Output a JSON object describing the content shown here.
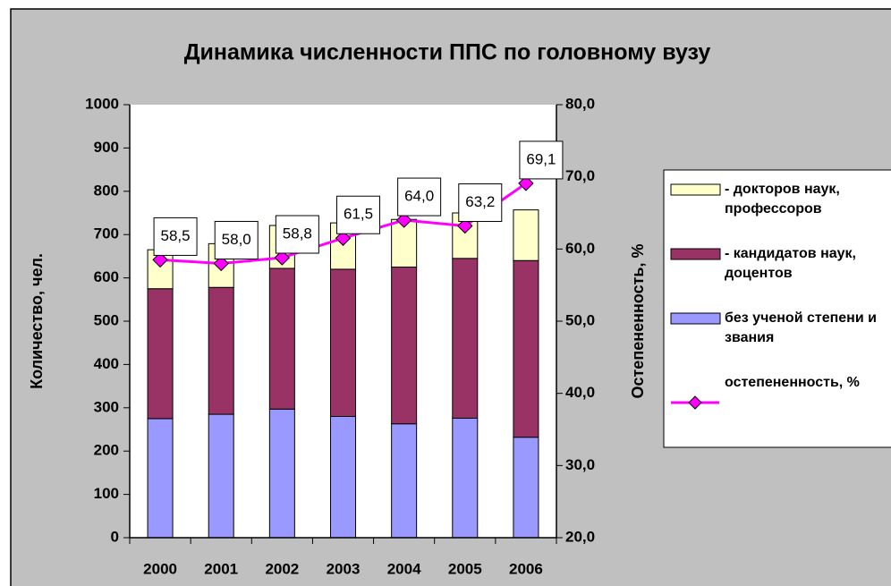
{
  "chart_data": {
    "type": "bar",
    "title": "Динамика численности ППС по головному вузу",
    "y_label": "Количество, чел.",
    "y2_label": "Остепененность, %",
    "categories": [
      "2000",
      "2001",
      "2002",
      "2003",
      "2004",
      "2005",
      "2006"
    ],
    "stacked": true,
    "series": [
      {
        "name": "без ученой степени и звания",
        "color": "#9999ff",
        "values": [
          275,
          285,
          297,
          280,
          263,
          276,
          232
        ]
      },
      {
        "name": "- кандидатов наук, доцентов",
        "color": "#993366",
        "values": [
          300,
          293,
          325,
          340,
          362,
          369,
          408
        ]
      },
      {
        "name": "- докторов наук, профессоров",
        "color": "#ffffcc",
        "values": [
          90,
          101,
          99,
          107,
          110,
          105,
          117
        ]
      },
      {
        "name": "остепененность, %",
        "type": "line",
        "axis": "y2",
        "color": "#ff00ff",
        "values": [
          58.5,
          58.0,
          58.8,
          61.5,
          64.0,
          63.2,
          69.1
        ],
        "value_labels": [
          "58,5",
          "58,0",
          "58,8",
          "61,5",
          "64,0",
          "63,2",
          "69,1"
        ]
      }
    ],
    "ylim": [
      0,
      1000
    ],
    "yticks": [
      0,
      100,
      200,
      300,
      400,
      500,
      600,
      700,
      800,
      900,
      1000
    ],
    "y2lim": [
      20,
      80
    ],
    "y2ticks": [
      {
        "value": 20,
        "label": "20,0"
      },
      {
        "value": 30,
        "label": "30,0"
      },
      {
        "value": 40,
        "label": "40,0"
      },
      {
        "value": 50,
        "label": "50,0"
      },
      {
        "value": 60,
        "label": "60,0"
      },
      {
        "value": 70,
        "label": "70,0"
      },
      {
        "value": 80,
        "label": "80,0"
      }
    ],
    "legend": "right"
  }
}
